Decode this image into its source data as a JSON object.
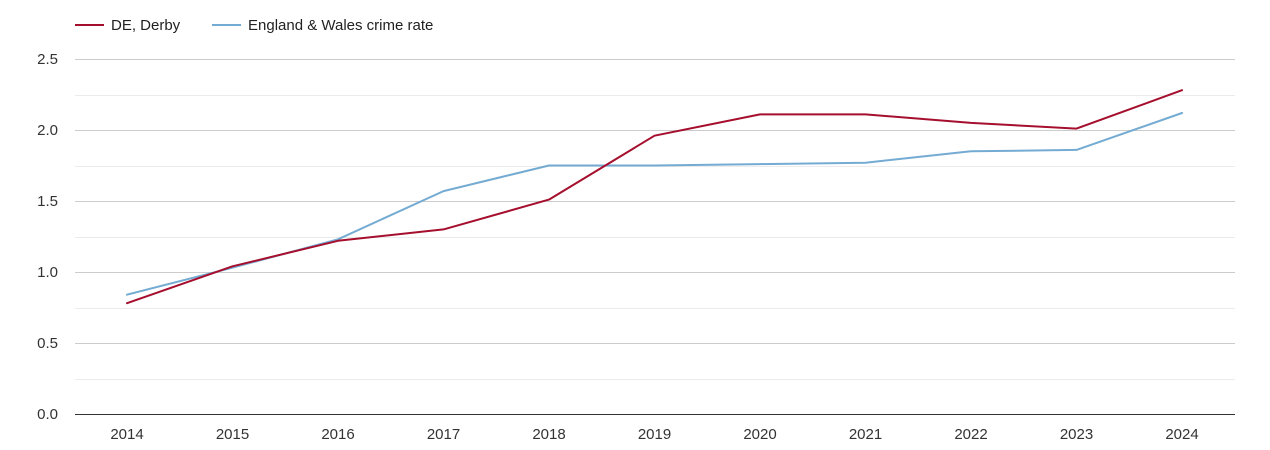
{
  "chart_data": {
    "type": "line",
    "title": "",
    "xlabel": "",
    "ylabel": "",
    "categories": [
      "2014",
      "2015",
      "2016",
      "2017",
      "2018",
      "2019",
      "2020",
      "2021",
      "2022",
      "2023",
      "2024"
    ],
    "ylim": [
      0,
      2.5
    ],
    "yticks": [
      "0.0",
      "0.5",
      "1.0",
      "1.5",
      "2.0",
      "2.5"
    ],
    "grid": true,
    "legend_position": "top-left",
    "series": [
      {
        "name": "DE, Derby",
        "color": "#a50f2d",
        "values": [
          0.78,
          1.04,
          1.22,
          1.3,
          1.51,
          1.96,
          2.11,
          2.11,
          2.05,
          2.01,
          2.28
        ]
      },
      {
        "name": "England & Wales crime rate",
        "color": "#74abd2",
        "values": [
          0.84,
          1.03,
          1.23,
          1.57,
          1.75,
          1.75,
          1.76,
          1.77,
          1.85,
          1.86,
          2.12
        ]
      }
    ]
  }
}
